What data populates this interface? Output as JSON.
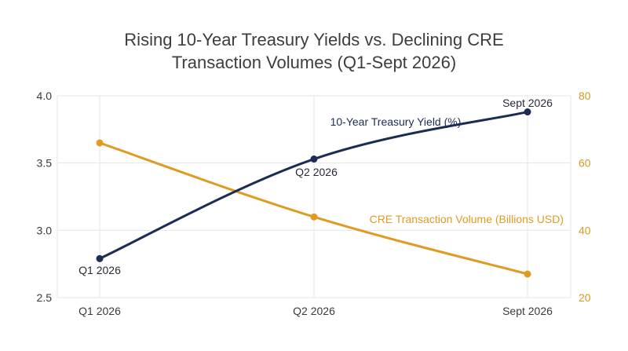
{
  "chart_data": {
    "type": "line",
    "title_line1": "Rising 10-Year Treasury Yields vs. Declining CRE",
    "title_line2": "Transaction Volumes (Q1-Sept 2026)",
    "categories": [
      "Q1 2026",
      "Q2 2026",
      "Sept 2026"
    ],
    "y_left": {
      "ticks": [
        "2.5",
        "3.0",
        "3.5",
        "4.0"
      ],
      "range": [
        2.5,
        4.0
      ]
    },
    "y_right": {
      "ticks": [
        "20",
        "40",
        "60",
        "80"
      ],
      "range": [
        20,
        80
      ]
    },
    "series": [
      {
        "name": "10-Year Treasury Yield (%)",
        "axis": "left",
        "color": "#1b2d54",
        "values": [
          2.79,
          3.53,
          3.88
        ],
        "point_labels": [
          "Q1 2026",
          "Q2 2026",
          "Sept 2026"
        ]
      },
      {
        "name": "CRE Transaction Volume (Billions USD)",
        "axis": "right",
        "color": "#e09b22",
        "values": [
          66,
          44,
          27
        ]
      }
    ],
    "grid": true,
    "legend": "inline labels"
  }
}
